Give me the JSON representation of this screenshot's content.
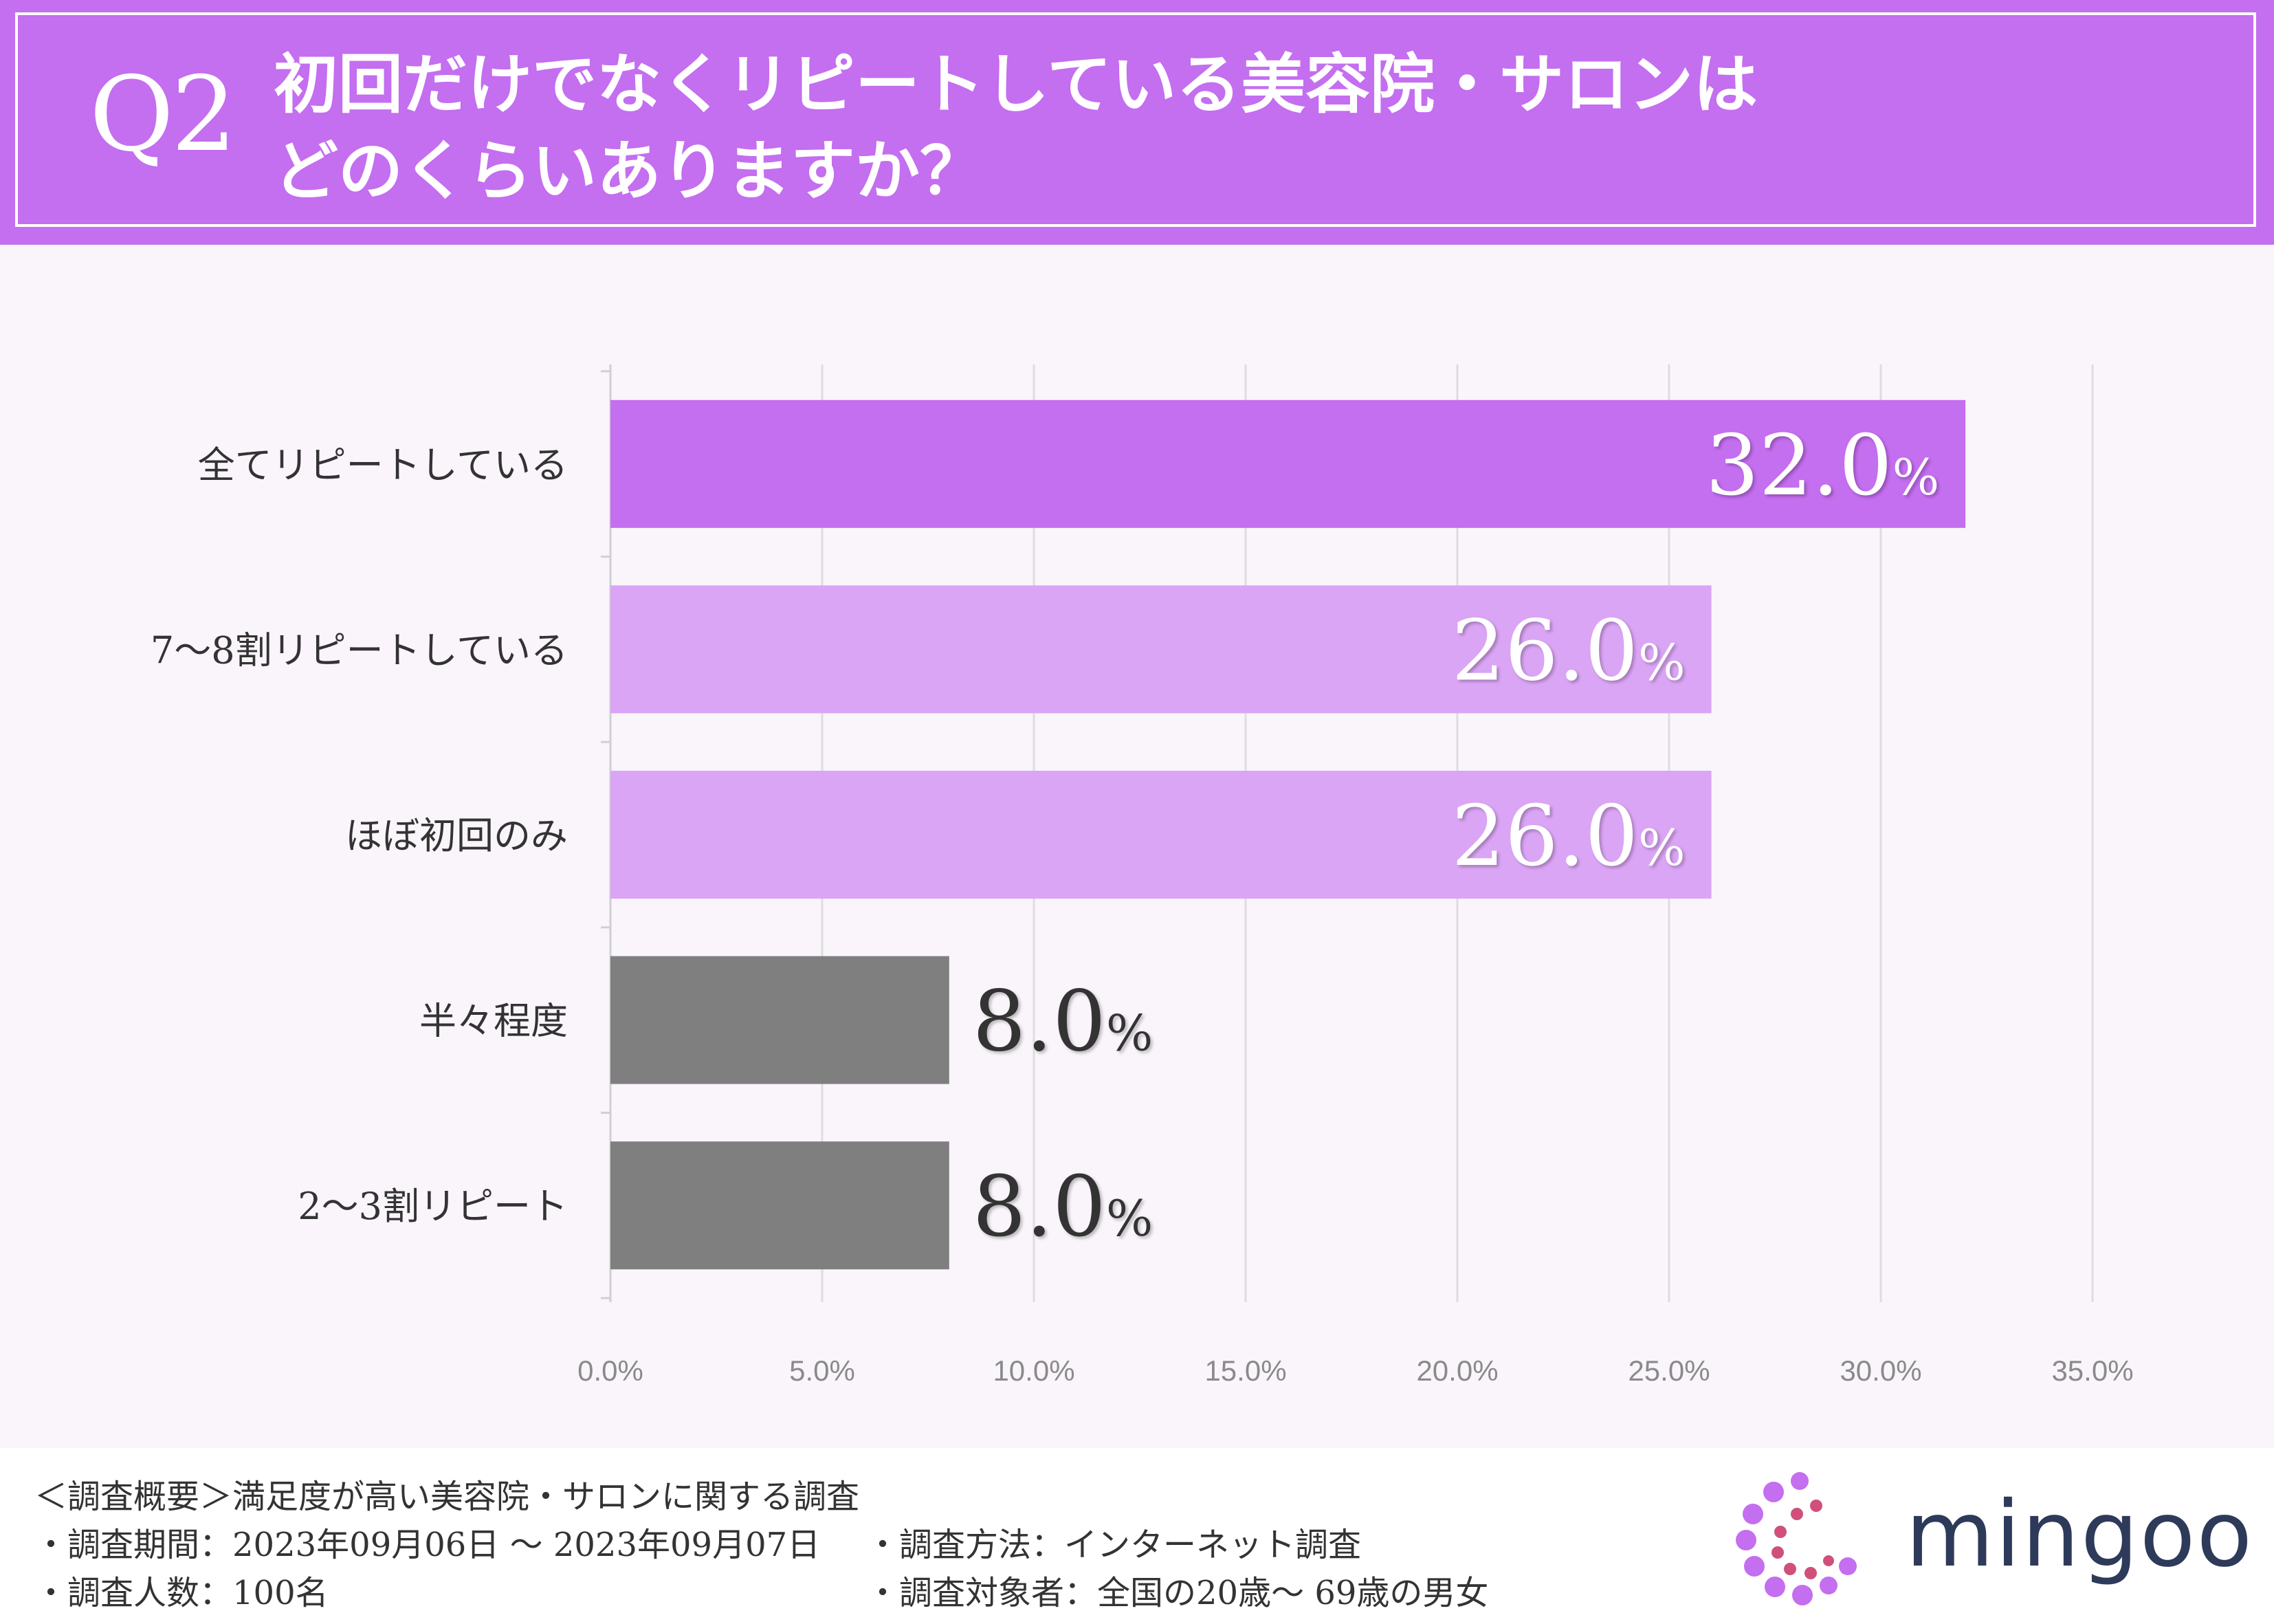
{
  "header": {
    "q_number": "Q2",
    "title_line1": "初回だけでなくリピートしている美容院・サロンは",
    "title_line2": "どのくらいありますか？"
  },
  "colors": {
    "header_bg": "#c46ef0",
    "bar_top": "#c46ef0",
    "bar_mid": "#dba5f5",
    "bar_low": "#7f7f7f",
    "page_bg": "#faf5fb"
  },
  "chart_data": {
    "type": "bar",
    "orientation": "horizontal",
    "categories": [
      "全てリピートしている",
      "7〜8割リピートしている",
      "ほぼ初回のみ",
      "半々程度",
      "2〜3割リピート"
    ],
    "values": [
      32.0,
      26.0,
      26.0,
      8.0,
      8.0
    ],
    "value_labels": [
      "32.0",
      "26.0",
      "26.0",
      "8.0",
      "8.0"
    ],
    "value_suffix": "%",
    "xlim": [
      0,
      35
    ],
    "xticks": [
      "0.0%",
      "5.0%",
      "10.0%",
      "15.0%",
      "20.0%",
      "25.0%",
      "30.0%",
      "35.0%"
    ],
    "grid": true,
    "title": "",
    "xlabel": "",
    "ylabel": ""
  },
  "footer": {
    "overview": "＜調査概要＞満足度が高い美容院・サロンに関する調査",
    "period": "・調査期間：2023年09月06日 〜 2023年09月07日",
    "method": "・調査方法：インターネット調査",
    "count": "・調査人数：100名",
    "target": "・調査対象者：全国の20歳〜 69歳の男女"
  },
  "logo": {
    "text": "mingoo"
  }
}
